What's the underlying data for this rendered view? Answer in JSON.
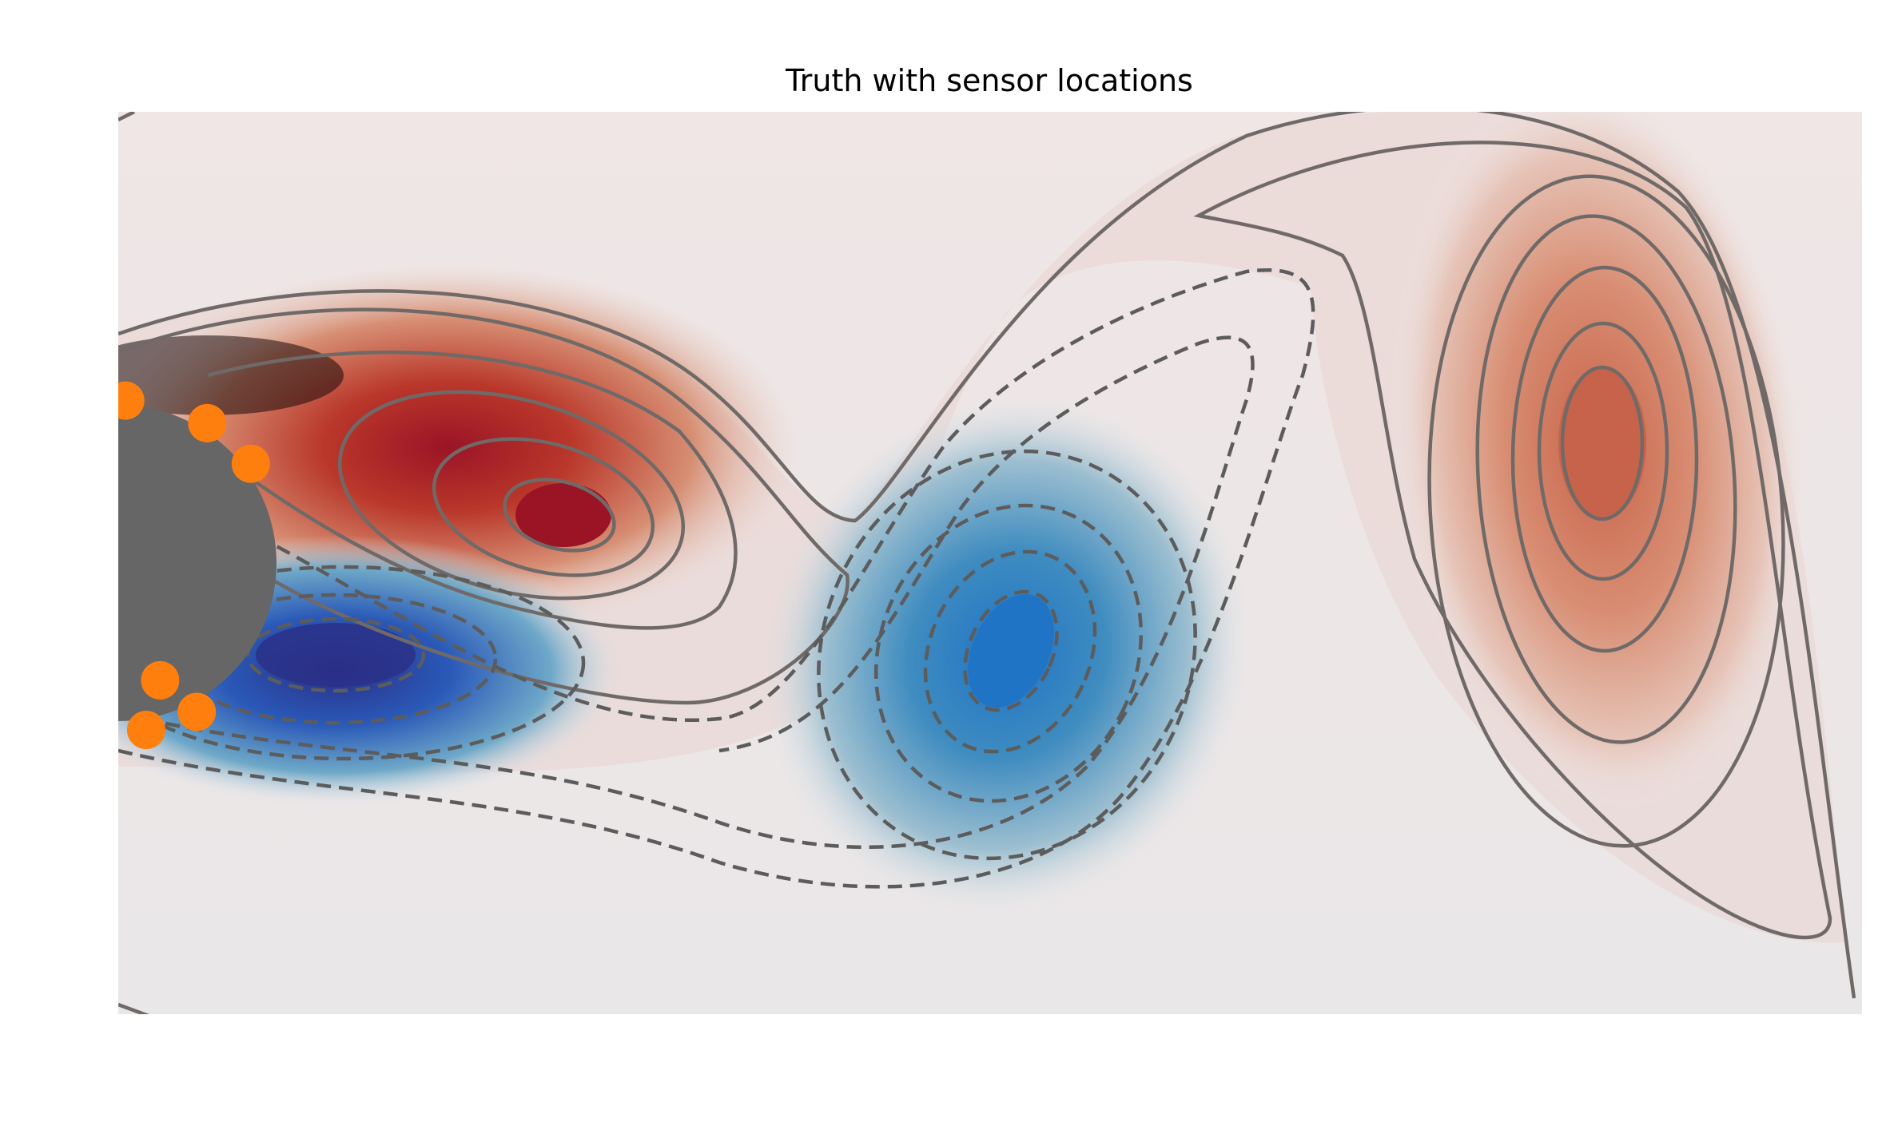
{
  "chart_data": {
    "type": "heatmap",
    "title": "Truth with sensor locations",
    "xlabel": "",
    "ylabel": "",
    "axes_visible": false,
    "colormap": "diverging red-blue (positive red, negative blue)",
    "contours": {
      "positive_style": "solid",
      "negative_style": "dashed",
      "line_color": "#6f6a68"
    },
    "vortices": [
      {
        "sign": "positive",
        "x": 0.25,
        "y": 0.55,
        "label": "upper attached vortex"
      },
      {
        "sign": "negative",
        "x": 0.13,
        "y": 0.37,
        "label": "lower attached vortex"
      },
      {
        "sign": "negative",
        "x": 0.52,
        "y": 0.4,
        "label": "shed vortex"
      },
      {
        "sign": "positive",
        "x": 0.85,
        "y": 0.63,
        "label": "shed vortex"
      }
    ],
    "obstacle": {
      "shape": "cylinder",
      "center": [
        0.0,
        0.5
      ],
      "radius": 0.175,
      "color": "#666666"
    },
    "sensors": {
      "color": "#ff7f0e",
      "count": 6,
      "points": [
        {
          "x": 0.004,
          "y": 0.68
        },
        {
          "x": 0.051,
          "y": 0.655
        },
        {
          "x": 0.076,
          "y": 0.61
        },
        {
          "x": 0.016,
          "y": 0.315
        },
        {
          "x": 0.045,
          "y": 0.335
        },
        {
          "x": 0.024,
          "y": 0.37
        }
      ]
    },
    "colors": {
      "positive_peak": "#9a1426",
      "positive_mid": "#c7634a",
      "negative_peak": "#1f74c6",
      "negative_deep": "#2b2f86",
      "background_upper": "#efe6e5",
      "background_lower": "#eae7e8"
    }
  }
}
